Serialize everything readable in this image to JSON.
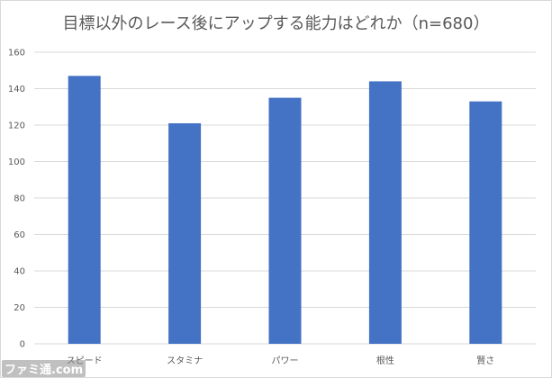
{
  "chart_data": {
    "type": "bar",
    "title": "目標以外のレース後にアップする能力はどれか（n=680）",
    "categories": [
      "スピード",
      "スタミナ",
      "パワー",
      "根性",
      "賢さ"
    ],
    "values": [
      147,
      121,
      135,
      144,
      133
    ],
    "ylim": [
      0,
      160
    ],
    "yticks": [
      0,
      20,
      40,
      60,
      80,
      100,
      120,
      140,
      160
    ],
    "grid": true,
    "legend": "none",
    "bar_color": "#4472c4"
  },
  "watermark": "ファミ通.com"
}
